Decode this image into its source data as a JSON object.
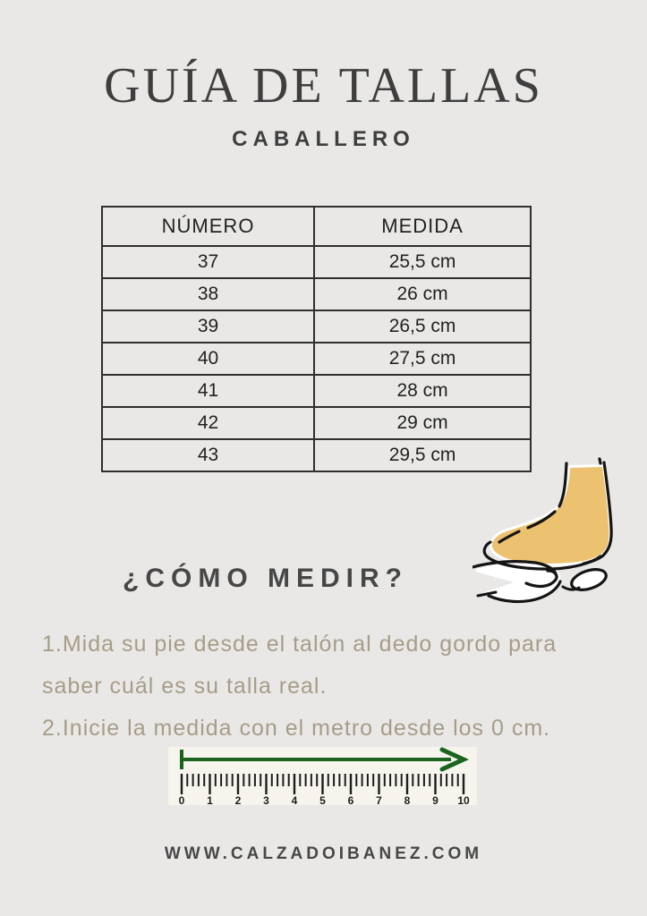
{
  "page": {
    "title": "GUÍA DE TALLAS",
    "subtitle": "CABALLERO",
    "background_color": "#e9e8e6"
  },
  "size_table": {
    "headers": [
      "NÚMERO",
      "MEDIDA"
    ],
    "rows": [
      [
        "37",
        "25,5 cm"
      ],
      [
        "38",
        "26 cm"
      ],
      [
        "39",
        "26,5 cm"
      ],
      [
        "40",
        "27,5 cm"
      ],
      [
        "41",
        "28 cm"
      ],
      [
        "42",
        "29 cm"
      ],
      [
        "43",
        "29,5 cm"
      ]
    ]
  },
  "how_to_measure": {
    "heading": "¿CÓMO MEDIR?",
    "steps": [
      "1.Mida su pie desde el talón al dedo gordo para saber cuál es su talla real.",
      "2.Inicie la medida con el metro desde los 0 cm."
    ]
  },
  "ruler": {
    "min": 0,
    "max": 10,
    "minor_per_unit": 5,
    "tick_labels": [
      "0",
      "1",
      "2",
      "3",
      "4",
      "5",
      "6",
      "7",
      "8",
      "9",
      "10"
    ],
    "background_color": "#f6f4ec",
    "arrow_color": "#1a6420",
    "tick_color": "#1d1d1d"
  },
  "illustration": {
    "name": "foot-resting-on-hand",
    "foot_color": "#ecc271",
    "outline_color": "#141414",
    "hand_color": "#ffffff"
  },
  "footer": {
    "website": "WWW.CALZADOIBANEZ.COM"
  },
  "colors": {
    "title_text": "#3e3e3e",
    "muted_text": "#a69d88",
    "table_border": "#2f2f2f"
  }
}
